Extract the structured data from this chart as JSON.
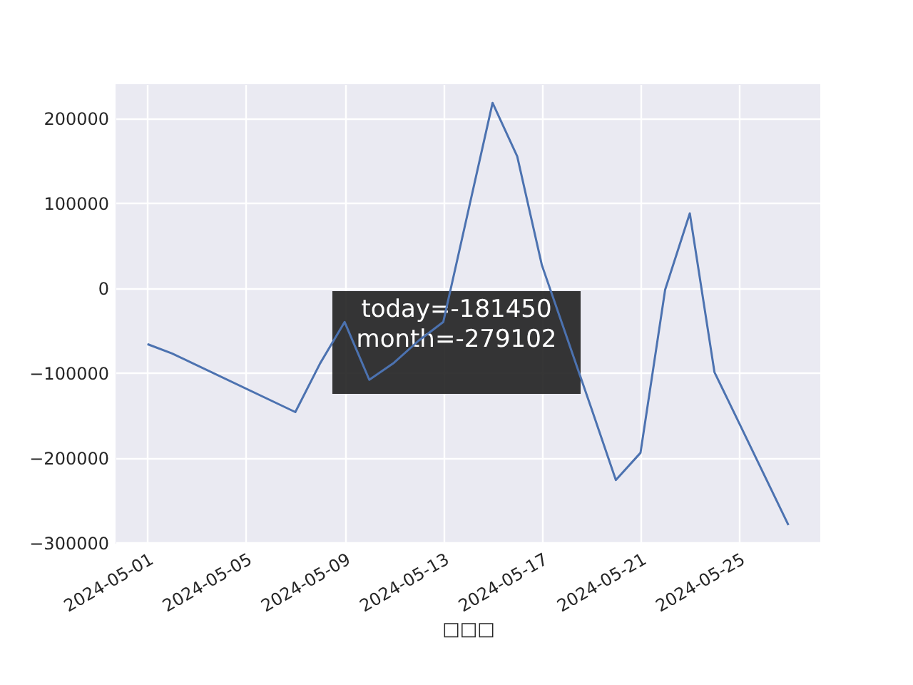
{
  "chart_data": {
    "type": "line",
    "xlabel": "□□□",
    "x": [
      "2024-05-01",
      "2024-05-02",
      "2024-05-07",
      "2024-05-08",
      "2024-05-09",
      "2024-05-10",
      "2024-05-11",
      "2024-05-12",
      "2024-05-13",
      "2024-05-14",
      "2024-05-15",
      "2024-05-16",
      "2024-05-17",
      "2024-05-18",
      "2024-05-19",
      "2024-05-20",
      "2024-05-21",
      "2024-05-22",
      "2024-05-23",
      "2024-05-24",
      "2024-05-25",
      "2024-05-26",
      "2024-05-27"
    ],
    "series": [
      {
        "color": "#4c72b0",
        "values": [
          -66000,
          -77000,
          -146000,
          -89000,
          -40000,
          -108000,
          -88000,
          -62000,
          -40000,
          89000,
          218000,
          155000,
          27000,
          -57000,
          -141000,
          -226000,
          -194000,
          -2000,
          88000,
          -99000,
          -159000,
          -219000,
          -279000
        ]
      }
    ],
    "xlim": [
      "2024-04-29T17:00",
      "2024-05-28T07:00"
    ],
    "xticks": [
      "2024-05-01",
      "2024-05-05",
      "2024-05-09",
      "2024-05-13",
      "2024-05-17",
      "2024-05-21",
      "2024-05-25"
    ],
    "ylim": [
      -301000,
      240000
    ],
    "yticks": [
      -300000,
      -200000,
      -100000,
      0,
      100000,
      200000
    ],
    "grid": true,
    "line_style": "solid",
    "marker": "none",
    "annotations": [
      "today=-181450\nmonth=-279102"
    ]
  }
}
